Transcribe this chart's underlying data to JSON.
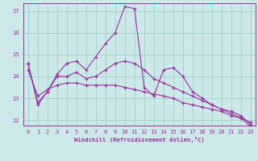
{
  "background_color": "#cce8e8",
  "grid_color": "#99cccc",
  "line_color": "#993399",
  "xlim": [
    -0.5,
    23.5
  ],
  "ylim": [
    11.75,
    17.35
  ],
  "xticks": [
    0,
    1,
    2,
    3,
    4,
    5,
    6,
    7,
    8,
    9,
    10,
    11,
    12,
    13,
    14,
    15,
    16,
    17,
    18,
    19,
    20,
    21,
    22,
    23
  ],
  "yticks": [
    12,
    13,
    14,
    15,
    16,
    17
  ],
  "xlabel": "Windchill (Refroidissement éolien,°C)",
  "line1_y": [
    14.6,
    12.7,
    13.3,
    14.1,
    14.6,
    14.7,
    14.3,
    14.9,
    15.5,
    16.0,
    17.2,
    17.1,
    13.5,
    13.1,
    14.3,
    14.4,
    14.0,
    13.3,
    13.0,
    12.7,
    12.5,
    12.3,
    12.1,
    11.7
  ],
  "line2_y": [
    14.6,
    12.8,
    13.3,
    14.0,
    14.0,
    14.2,
    13.9,
    14.0,
    14.3,
    14.6,
    14.7,
    14.6,
    14.3,
    13.9,
    13.7,
    13.5,
    13.3,
    13.1,
    12.9,
    12.7,
    12.5,
    12.4,
    12.2,
    11.8
  ],
  "line3_y": [
    14.3,
    13.1,
    13.4,
    13.6,
    13.7,
    13.7,
    13.6,
    13.6,
    13.6,
    13.6,
    13.5,
    13.4,
    13.3,
    13.2,
    13.1,
    13.0,
    12.8,
    12.7,
    12.6,
    12.5,
    12.4,
    12.2,
    12.1,
    11.9
  ]
}
